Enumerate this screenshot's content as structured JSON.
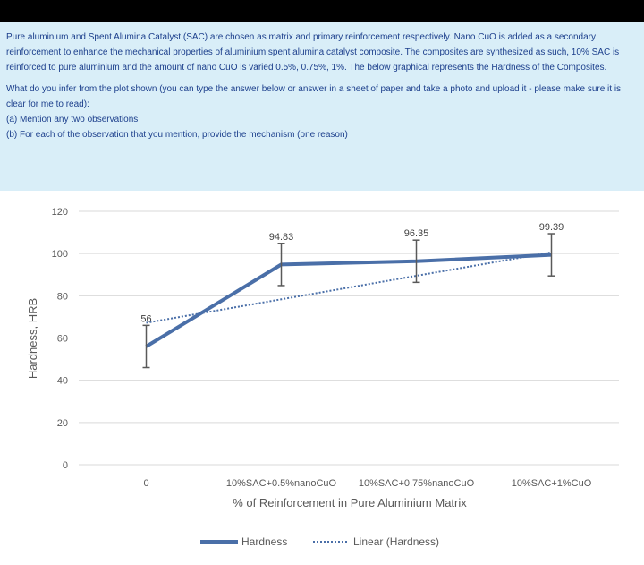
{
  "question": {
    "intro": "Pure aluminium and Spent Alumina Catalyst (SAC) are chosen as matrix and primary reinforcement respectively. Nano CuO is added as a secondary reinforcement to enhance the mechanical properties of aluminium spent alumina catalyst composite. The composites are synthesized as such, 10% SAC is reinforced to pure aluminium and the amount of nano CuO is varied 0.5%, 0.75%, 1%. The below graphical represents the Hardness of the Composites.",
    "prompt": "What do you infer from the plot shown (you can type the answer below or answer in a sheet of paper and take a photo and upload it - please make sure it is clear for me to read):",
    "part_a": "(a) Mention any two observations",
    "part_b": "(b) For each of the observation that you mention, provide the mechanism (one reason)"
  },
  "colors": {
    "panel_bg": "#d9eef8",
    "text": "#1c3f8c",
    "series": "#4a6fa8",
    "grid": "#d9d9d9",
    "error_bar": "#595959"
  },
  "chart_data": {
    "type": "line",
    "title": "",
    "xlabel": "% of Reinforcement in Pure Aluminium Matrix",
    "ylabel": "Hardness, HRB",
    "categories": [
      "0",
      "10%SAC+0.5%nanoCuO",
      "10%SAC+0.75%nanoCuO",
      "10%SAC+1%CuO"
    ],
    "series": [
      {
        "name": "Hardness",
        "values": [
          56,
          94.83,
          96.35,
          99.39
        ],
        "data_labels": [
          "56",
          "94.83",
          "96.35",
          "99.39"
        ],
        "error": [
          10,
          10,
          10,
          10
        ]
      }
    ],
    "trendline": {
      "name": "Linear (Hardness)",
      "type": "linear",
      "start": 67.2,
      "end": 100.6
    },
    "y_ticks": [
      "0",
      "20",
      "40",
      "60",
      "80",
      "100",
      "120"
    ],
    "ylim": [
      0,
      120
    ],
    "grid": true,
    "legend": "bottom"
  }
}
